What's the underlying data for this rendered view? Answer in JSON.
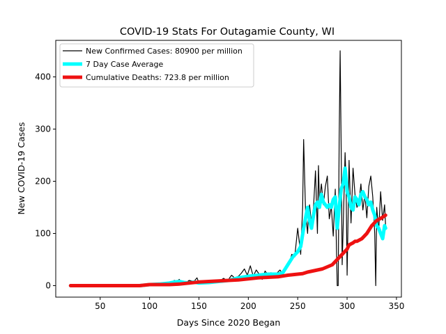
{
  "chart_data": {
    "type": "line",
    "title": "COVID-19 Stats For Outagamie County, WI",
    "xlabel": "Days Since 2020 Began",
    "ylabel": "New COVID-19 Cases",
    "xlim": [
      5,
      355
    ],
    "ylim": [
      -22,
      470
    ],
    "xticks": [
      50,
      100,
      150,
      200,
      250,
      300,
      350
    ],
    "yticks": [
      0,
      100,
      200,
      300,
      400
    ],
    "grid": false,
    "legend_position": "top-left",
    "series": [
      {
        "name": "New Confirmed Cases: 80900 per million",
        "color": "#000000",
        "x": [
          20,
          60,
          90,
          95,
          100,
          105,
          110,
          115,
          120,
          125,
          128,
          130,
          133,
          136,
          140,
          145,
          148,
          150,
          153,
          156,
          160,
          165,
          170,
          175,
          178,
          180,
          183,
          186,
          190,
          193,
          196,
          199,
          202,
          205,
          208,
          211,
          214,
          217,
          220,
          223,
          226,
          229,
          232,
          235,
          238,
          241,
          244,
          247,
          250,
          253,
          255,
          256,
          258,
          260,
          261,
          262,
          264,
          266,
          268,
          270,
          271,
          272,
          274,
          276,
          278,
          280,
          282,
          284,
          286,
          288,
          290,
          291,
          292,
          293,
          294,
          295,
          296,
          297,
          298,
          299,
          300,
          302,
          304,
          306,
          308,
          310,
          312,
          314,
          316,
          318,
          320,
          322,
          324,
          326,
          328,
          329,
          330,
          332,
          334,
          336,
          338,
          339
        ],
        "y": [
          0,
          0,
          0,
          2,
          1,
          3,
          2,
          5,
          4,
          10,
          8,
          12,
          6,
          4,
          10,
          8,
          15,
          5,
          9,
          7,
          6,
          10,
          8,
          14,
          10,
          12,
          20,
          15,
          18,
          24,
          32,
          20,
          38,
          18,
          30,
          22,
          12,
          28,
          20,
          25,
          18,
          24,
          30,
          22,
          30,
          40,
          60,
          55,
          110,
          60,
          150,
          280,
          140,
          100,
          140,
          155,
          118,
          150,
          220,
          100,
          230,
          160,
          195,
          155,
          190,
          210,
          128,
          152,
          95,
          185,
          0,
          0,
          280,
          450,
          260,
          40,
          110,
          180,
          255,
          200,
          20,
          240,
          120,
          225,
          175,
          150,
          160,
          195,
          145,
          175,
          130,
          190,
          210,
          170,
          100,
          0,
          150,
          105,
          180,
          125,
          155,
          115
        ],
        "line_width": 1.2
      },
      {
        "name": "7 Day Case Average",
        "color": "#00ffff",
        "x": [
          20,
          60,
          90,
          100,
          110,
          120,
          125,
          130,
          135,
          140,
          145,
          150,
          160,
          170,
          180,
          190,
          200,
          210,
          220,
          230,
          235,
          240,
          245,
          250,
          253,
          256,
          258,
          260,
          262,
          264,
          266,
          268,
          270,
          272,
          274,
          276,
          278,
          280,
          282,
          284,
          286,
          288,
          290,
          292,
          294,
          296,
          298,
          300,
          302,
          304,
          306,
          308,
          310,
          312,
          314,
          316,
          318,
          320,
          322,
          324,
          326,
          328,
          330,
          332,
          334,
          336,
          338,
          339
        ],
        "y": [
          0,
          0,
          0,
          2,
          3,
          5,
          7,
          8,
          6,
          5,
          7,
          5,
          6,
          8,
          10,
          15,
          18,
          20,
          22,
          22,
          25,
          40,
          55,
          65,
          75,
          110,
          130,
          150,
          125,
          110,
          135,
          155,
          160,
          150,
          175,
          160,
          155,
          150,
          155,
          150,
          165,
          170,
          110,
          150,
          185,
          195,
          225,
          180,
          170,
          150,
          145,
          170,
          165,
          155,
          175,
          180,
          170,
          165,
          155,
          160,
          145,
          135,
          115,
          110,
          100,
          90,
          115,
          110
        ],
        "line_width": 5
      },
      {
        "name": "Cumulative Deaths: 723.8 per million",
        "color": "#ee1111",
        "x": [
          20,
          60,
          90,
          100,
          110,
          120,
          130,
          140,
          150,
          160,
          170,
          180,
          190,
          200,
          210,
          220,
          230,
          240,
          250,
          255,
          260,
          265,
          270,
          275,
          280,
          285,
          290,
          295,
          300,
          302,
          304,
          306,
          308,
          310,
          315,
          320,
          325,
          330,
          335,
          339
        ],
        "y": [
          0,
          0,
          0,
          2,
          2,
          2,
          3,
          5,
          7,
          8,
          9,
          10,
          11,
          13,
          15,
          16,
          17,
          20,
          22,
          23,
          26,
          28,
          30,
          32,
          36,
          40,
          50,
          60,
          70,
          78,
          80,
          82,
          85,
          85,
          90,
          100,
          115,
          125,
          130,
          135
        ],
        "line_width": 5
      }
    ]
  }
}
